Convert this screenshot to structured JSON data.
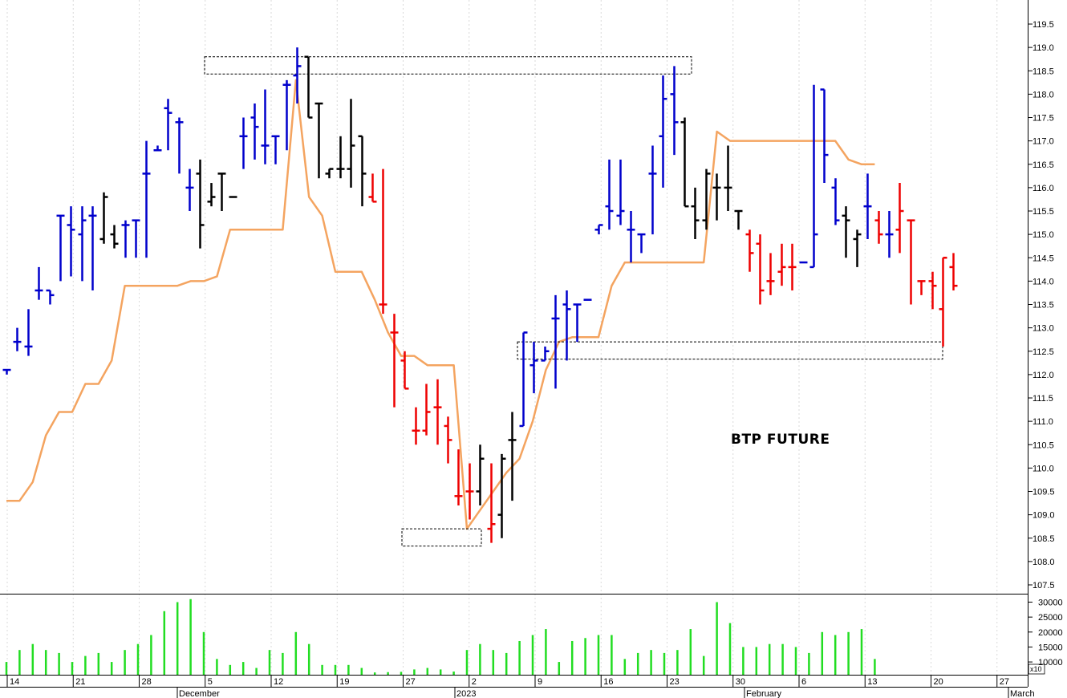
{
  "chart_data": {
    "type": "bar",
    "annotation": "BTP FUTURE",
    "price_axis": {
      "ylim": [
        107.2,
        119.7
      ],
      "ticks": [
        "107.5",
        "108.0",
        "108.5",
        "109.0",
        "109.5",
        "110.0",
        "110.5",
        "111.0",
        "111.5",
        "112.0",
        "112.5",
        "113.0",
        "113.5",
        "114.0",
        "114.5",
        "115.0",
        "115.5",
        "116.0",
        "116.5",
        "117.0",
        "117.5",
        "118.0",
        "118.5",
        "119.0",
        "119.5"
      ]
    },
    "volume_axis": {
      "ylim": [
        6000,
        32000
      ],
      "ticks": [
        "10000",
        "15000",
        "20000",
        "25000",
        "30000"
      ],
      "multiplier_label": "x10"
    },
    "x_axis": {
      "day_labels": [
        "14",
        "21",
        "28",
        "5",
        "12",
        "19",
        "27",
        "2",
        "9",
        "16",
        "23",
        "30",
        "6",
        "13",
        "20",
        "27"
      ],
      "month_labels": [
        "December",
        "2023",
        "February",
        "March"
      ]
    },
    "colors": {
      "up": "#0000cc",
      "down": "#ee0000",
      "neutral": "#000000",
      "ma_line": "#f4a460",
      "volume": "#22dd22",
      "boxes": "#000000"
    },
    "ohlc": [
      {
        "o": 112.1,
        "h": 112.1,
        "l": 112.0,
        "c": 112.1,
        "col": "u"
      },
      {
        "o": 112.7,
        "h": 113.0,
        "l": 112.5,
        "c": 112.7,
        "col": "u"
      },
      {
        "o": 112.6,
        "h": 113.4,
        "l": 112.4,
        "c": 112.6,
        "col": "u"
      },
      {
        "o": 113.8,
        "h": 114.3,
        "l": 113.6,
        "c": 113.8,
        "col": "u"
      },
      {
        "o": 113.8,
        "h": 113.8,
        "l": 113.5,
        "c": 113.7,
        "col": "u"
      },
      {
        "o": 115.4,
        "h": 115.4,
        "l": 114.0,
        "c": 115.4,
        "col": "u"
      },
      {
        "o": 115.2,
        "h": 115.6,
        "l": 114.1,
        "c": 115.1,
        "col": "u"
      },
      {
        "o": 115.0,
        "h": 115.6,
        "l": 114.0,
        "c": 115.3,
        "col": "u"
      },
      {
        "o": 115.4,
        "h": 115.6,
        "l": 113.8,
        "c": 115.4,
        "col": "u"
      },
      {
        "o": 114.9,
        "h": 115.9,
        "l": 114.8,
        "c": 115.8,
        "col": "k"
      },
      {
        "o": 115.0,
        "h": 115.2,
        "l": 114.7,
        "c": 114.8,
        "col": "k"
      },
      {
        "o": 115.2,
        "h": 115.3,
        "l": 114.5,
        "c": 115.2,
        "col": "u"
      },
      {
        "o": 115.3,
        "h": 115.3,
        "l": 114.5,
        "c": 115.3,
        "col": "u"
      },
      {
        "o": 116.3,
        "h": 117.0,
        "l": 114.5,
        "c": 116.3,
        "col": "u"
      },
      {
        "o": 116.8,
        "h": 116.9,
        "l": 116.8,
        "c": 116.8,
        "col": "u"
      },
      {
        "o": 117.7,
        "h": 117.9,
        "l": 116.8,
        "c": 117.6,
        "col": "u"
      },
      {
        "o": 117.4,
        "h": 117.5,
        "l": 116.3,
        "c": 117.4,
        "col": "u"
      },
      {
        "o": 116.0,
        "h": 116.4,
        "l": 115.5,
        "c": 116.0,
        "col": "u"
      },
      {
        "o": 116.3,
        "h": 116.6,
        "l": 114.7,
        "c": 115.2,
        "col": "k"
      },
      {
        "o": 115.7,
        "h": 116.1,
        "l": 115.6,
        "c": 115.8,
        "col": "k"
      },
      {
        "o": 116.3,
        "h": 116.3,
        "l": 115.5,
        "c": 116.3,
        "col": "k"
      },
      {
        "o": 115.8,
        "h": 115.8,
        "l": 115.8,
        "c": 115.8,
        "col": "k"
      },
      {
        "o": 117.1,
        "h": 117.5,
        "l": 116.4,
        "c": 117.1,
        "col": "u"
      },
      {
        "o": 117.5,
        "h": 117.8,
        "l": 116.6,
        "c": 117.3,
        "col": "u"
      },
      {
        "o": 116.9,
        "h": 118.1,
        "l": 116.5,
        "c": 116.9,
        "col": "u"
      },
      {
        "o": 117.1,
        "h": 117.1,
        "l": 116.5,
        "c": 117.1,
        "col": "u"
      },
      {
        "o": 118.2,
        "h": 118.3,
        "l": 116.8,
        "c": 118.2,
        "col": "u"
      },
      {
        "o": 118.4,
        "h": 119.0,
        "l": 117.8,
        "c": 118.6,
        "col": "u"
      },
      {
        "o": 118.8,
        "h": 118.8,
        "l": 117.5,
        "c": 117.5,
        "col": "k"
      },
      {
        "o": 117.8,
        "h": 117.8,
        "l": 116.2,
        "c": 117.8,
        "col": "k"
      },
      {
        "o": 116.3,
        "h": 116.4,
        "l": 116.2,
        "c": 116.4,
        "col": "k"
      },
      {
        "o": 116.4,
        "h": 117.1,
        "l": 116.2,
        "c": 116.4,
        "col": "k"
      },
      {
        "o": 116.4,
        "h": 117.9,
        "l": 116.0,
        "c": 116.9,
        "col": "k"
      },
      {
        "o": 117.1,
        "h": 117.1,
        "l": 115.6,
        "c": 116.3,
        "col": "k"
      },
      {
        "o": 115.8,
        "h": 116.3,
        "l": 115.7,
        "c": 115.7,
        "col": "r"
      },
      {
        "o": 113.5,
        "h": 116.4,
        "l": 113.3,
        "c": 113.5,
        "col": "r"
      },
      {
        "o": 112.9,
        "h": 113.3,
        "l": 111.3,
        "c": 112.9,
        "col": "r"
      },
      {
        "o": 112.3,
        "h": 112.5,
        "l": 111.7,
        "c": 111.7,
        "col": "r"
      },
      {
        "o": 110.8,
        "h": 111.3,
        "l": 110.5,
        "c": 110.8,
        "col": "r"
      },
      {
        "o": 110.8,
        "h": 111.8,
        "l": 110.7,
        "c": 111.2,
        "col": "r"
      },
      {
        "o": 111.3,
        "h": 111.9,
        "l": 110.5,
        "c": 111.3,
        "col": "r"
      },
      {
        "o": 110.9,
        "h": 111.1,
        "l": 110.1,
        "c": 110.6,
        "col": "r"
      },
      {
        "o": 109.4,
        "h": 110.4,
        "l": 109.2,
        "c": 109.4,
        "col": "r"
      },
      {
        "o": 109.5,
        "h": 110.1,
        "l": 108.9,
        "c": 109.5,
        "col": "r"
      },
      {
        "o": 109.5,
        "h": 110.5,
        "l": 109.2,
        "c": 110.2,
        "col": "k"
      },
      {
        "o": 108.7,
        "h": 110.1,
        "l": 108.4,
        "c": 108.8,
        "col": "r"
      },
      {
        "o": 109.0,
        "h": 110.3,
        "l": 108.5,
        "c": 110.2,
        "col": "k"
      },
      {
        "o": 110.6,
        "h": 111.2,
        "l": 109.3,
        "c": 110.6,
        "col": "k"
      },
      {
        "o": 110.9,
        "h": 112.9,
        "l": 110.9,
        "c": 112.9,
        "col": "u"
      },
      {
        "o": 112.2,
        "h": 112.7,
        "l": 111.6,
        "c": 112.3,
        "col": "u"
      },
      {
        "o": 112.3,
        "h": 112.6,
        "l": 112.3,
        "c": 112.5,
        "col": "u"
      },
      {
        "o": 113.2,
        "h": 113.7,
        "l": 111.7,
        "c": 113.2,
        "col": "u"
      },
      {
        "o": 113.5,
        "h": 113.8,
        "l": 112.3,
        "c": 113.4,
        "col": "u"
      },
      {
        "o": 113.5,
        "h": 113.5,
        "l": 112.7,
        "c": 113.5,
        "col": "u"
      },
      {
        "o": 113.6,
        "h": 113.6,
        "l": 113.6,
        "c": 113.6,
        "col": "u"
      },
      {
        "o": 115.1,
        "h": 115.2,
        "l": 115.0,
        "c": 115.2,
        "col": "u"
      },
      {
        "o": 115.6,
        "h": 116.6,
        "l": 115.1,
        "c": 115.5,
        "col": "u"
      },
      {
        "o": 115.4,
        "h": 116.6,
        "l": 115.2,
        "c": 115.5,
        "col": "u"
      },
      {
        "o": 115.1,
        "h": 115.5,
        "l": 114.4,
        "c": 115.1,
        "col": "u"
      },
      {
        "o": 115.0,
        "h": 115.0,
        "l": 114.6,
        "c": 115.0,
        "col": "u"
      },
      {
        "o": 116.3,
        "h": 116.9,
        "l": 115.0,
        "c": 116.3,
        "col": "u"
      },
      {
        "o": 117.1,
        "h": 118.4,
        "l": 116.0,
        "c": 117.9,
        "col": "u"
      },
      {
        "o": 118.0,
        "h": 118.6,
        "l": 116.7,
        "c": 117.4,
        "col": "u"
      },
      {
        "o": 117.4,
        "h": 117.5,
        "l": 115.6,
        "c": 115.6,
        "col": "k"
      },
      {
        "o": 115.6,
        "h": 116.0,
        "l": 114.9,
        "c": 115.3,
        "col": "k"
      },
      {
        "o": 115.3,
        "h": 116.4,
        "l": 115.1,
        "c": 116.3,
        "col": "k"
      },
      {
        "o": 116.0,
        "h": 116.3,
        "l": 115.3,
        "c": 116.0,
        "col": "k"
      },
      {
        "o": 116.0,
        "h": 116.9,
        "l": 115.5,
        "c": 116.0,
        "col": "k"
      },
      {
        "o": 115.5,
        "h": 115.5,
        "l": 115.1,
        "c": 115.5,
        "col": "k"
      },
      {
        "o": 115.0,
        "h": 115.1,
        "l": 114.2,
        "c": 114.6,
        "col": "r"
      },
      {
        "o": 114.8,
        "h": 115.0,
        "l": 113.5,
        "c": 113.8,
        "col": "r"
      },
      {
        "o": 114.0,
        "h": 114.6,
        "l": 113.7,
        "c": 114.0,
        "col": "r"
      },
      {
        "o": 114.2,
        "h": 114.8,
        "l": 113.9,
        "c": 114.3,
        "col": "r"
      },
      {
        "o": 114.3,
        "h": 114.8,
        "l": 113.8,
        "c": 114.3,
        "col": "r"
      },
      {
        "o": 114.4,
        "h": 114.4,
        "l": 114.4,
        "c": 114.4,
        "col": "u"
      },
      {
        "o": 114.3,
        "h": 118.2,
        "l": 114.3,
        "c": 115.0,
        "col": "u"
      },
      {
        "o": 118.1,
        "h": 118.1,
        "l": 116.1,
        "c": 116.7,
        "col": "u"
      },
      {
        "o": 116.0,
        "h": 116.2,
        "l": 115.2,
        "c": 115.3,
        "col": "u"
      },
      {
        "o": 115.4,
        "h": 115.6,
        "l": 114.5,
        "c": 115.3,
        "col": "k"
      },
      {
        "o": 114.9,
        "h": 115.1,
        "l": 114.3,
        "c": 115.0,
        "col": "k"
      },
      {
        "o": 115.6,
        "h": 116.3,
        "l": 114.9,
        "c": 115.6,
        "col": "u"
      },
      {
        "o": 115.3,
        "h": 115.5,
        "l": 114.8,
        "c": 115.0,
        "col": "r"
      },
      {
        "o": 115.0,
        "h": 115.5,
        "l": 114.5,
        "c": 115.0,
        "col": "u"
      },
      {
        "o": 115.1,
        "h": 116.1,
        "l": 114.6,
        "c": 115.5,
        "col": "r"
      },
      {
        "o": 115.3,
        "h": 115.3,
        "l": 113.5,
        "c": 115.3,
        "col": "r"
      },
      {
        "o": 114.0,
        "h": 114.0,
        "l": 113.7,
        "c": 114.0,
        "col": "r"
      },
      {
        "o": 114.0,
        "h": 114.2,
        "l": 113.4,
        "c": 113.9,
        "col": "r"
      },
      {
        "o": 113.4,
        "h": 114.5,
        "l": 112.6,
        "c": 114.5,
        "col": "r"
      },
      {
        "o": 114.3,
        "h": 114.6,
        "l": 113.8,
        "c": 113.9,
        "col": "r"
      }
    ],
    "volume": [
      10000,
      14000,
      16000,
      14000,
      13000,
      10000,
      12000,
      13000,
      10000,
      14000,
      16000,
      19000,
      27000,
      30000,
      31000,
      20000,
      11000,
      9000,
      10000,
      8000,
      14000,
      13000,
      20000,
      16000,
      9000,
      9000,
      9000,
      8000,
      6500,
      6600,
      6700,
      7500,
      8000,
      7500,
      6800,
      14000,
      16000,
      14000,
      13000,
      17000,
      19000,
      21000,
      10000,
      17000,
      18000,
      19000,
      19000,
      11000,
      13000,
      14000,
      13000,
      14000,
      21000,
      12000,
      30000,
      23000,
      15000,
      15000,
      16000,
      16000,
      15000,
      13000,
      20000,
      19000,
      20000,
      21000,
      11000
    ],
    "ma_line": [
      [
        0,
        109.3
      ],
      [
        1,
        109.3
      ],
      [
        2,
        109.7
      ],
      [
        3,
        110.7
      ],
      [
        4,
        111.2
      ],
      [
        5,
        111.2
      ],
      [
        6,
        111.8
      ],
      [
        7,
        111.8
      ],
      [
        8,
        112.3
      ],
      [
        9,
        113.9
      ],
      [
        10,
        113.9
      ],
      [
        11,
        113.9
      ],
      [
        12,
        113.9
      ],
      [
        13,
        113.9
      ],
      [
        14,
        114.0
      ],
      [
        15,
        114.0
      ],
      [
        16,
        114.1
      ],
      [
        17,
        115.1
      ],
      [
        18,
        115.1
      ],
      [
        19,
        115.1
      ],
      [
        20,
        115.1
      ],
      [
        21,
        115.1
      ],
      [
        22,
        118.3
      ],
      [
        23,
        115.8
      ],
      [
        24,
        115.4
      ],
      [
        25,
        114.2
      ],
      [
        26,
        114.2
      ],
      [
        27,
        114.2
      ],
      [
        28,
        113.6
      ],
      [
        29,
        112.9
      ],
      [
        30,
        112.4
      ],
      [
        31,
        112.4
      ],
      [
        32,
        112.2
      ],
      [
        33,
        112.2
      ],
      [
        34,
        112.2
      ],
      [
        35,
        108.7
      ],
      [
        36,
        109.1
      ],
      [
        37,
        109.5
      ],
      [
        38,
        109.9
      ],
      [
        39,
        110.2
      ],
      [
        40,
        111.0
      ],
      [
        41,
        112.1
      ],
      [
        42,
        112.7
      ],
      [
        43,
        112.8
      ],
      [
        44,
        112.8
      ],
      [
        45,
        112.8
      ],
      [
        46,
        113.9
      ],
      [
        47,
        114.4
      ],
      [
        48,
        114.4
      ],
      [
        49,
        114.4
      ],
      [
        50,
        114.4
      ],
      [
        51,
        114.4
      ],
      [
        52,
        114.4
      ],
      [
        53,
        114.4
      ],
      [
        54,
        117.2
      ],
      [
        55,
        117.0
      ],
      [
        56,
        117.0
      ],
      [
        57,
        117.0
      ],
      [
        58,
        117.0
      ],
      [
        59,
        117.0
      ],
      [
        60,
        117.0
      ],
      [
        61,
        117.0
      ],
      [
        62,
        117.0
      ],
      [
        63,
        117.0
      ],
      [
        64,
        116.6
      ],
      [
        65,
        116.5
      ],
      [
        66,
        116.5
      ]
    ],
    "boxes": [
      {
        "start": "5",
        "end": "23",
        "y_top": 118.8,
        "y_bottom": 118.5
      },
      {
        "start": "27",
        "end": "2",
        "y_top": 108.7,
        "y_bottom": 108.4
      },
      {
        "start": "9",
        "end": "20",
        "y_top": 112.7,
        "y_bottom": 112.4
      }
    ]
  }
}
